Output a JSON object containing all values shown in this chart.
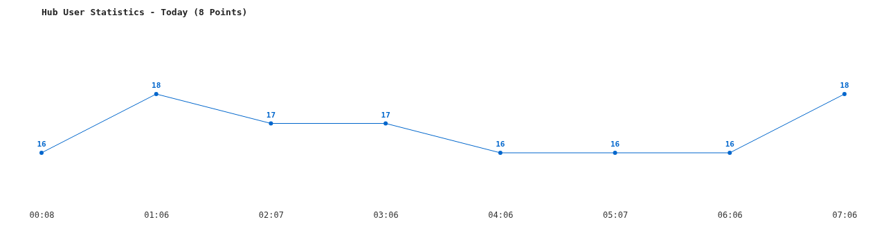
{
  "chart_data": {
    "type": "line",
    "title": "Hub User Statistics - Today (8 Points)",
    "categories": [
      "00:08",
      "01:06",
      "02:07",
      "03:06",
      "04:06",
      "05:07",
      "06:06",
      "07:06"
    ],
    "values": [
      16,
      18,
      17,
      17,
      16,
      16,
      16,
      18
    ],
    "color": "#0066cc",
    "data_labels": true,
    "marker": "circle"
  }
}
